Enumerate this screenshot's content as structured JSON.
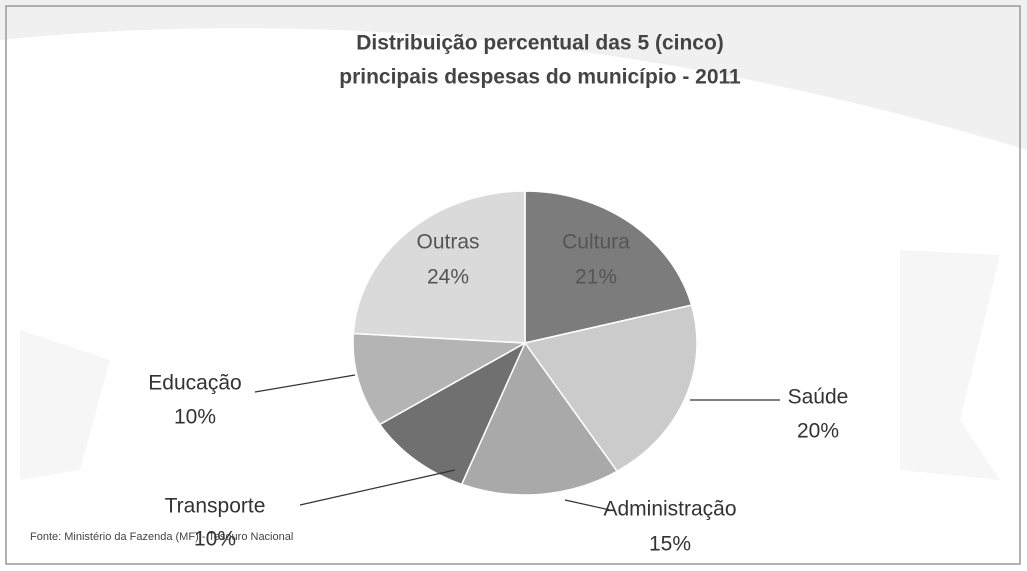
{
  "chart_data": {
    "type": "pie",
    "title": [
      "Distribuição percentual das 5 (cinco)",
      "principais despesas do município - 2011"
    ],
    "categories": [
      "Cultura",
      "Saúde",
      "Administração",
      "Transporte",
      "Educação",
      "Outras"
    ],
    "values": [
      21,
      20,
      15,
      10,
      10,
      24
    ],
    "value_labels": [
      "21%",
      "20%",
      "15%",
      "10%",
      "10%",
      "24%"
    ],
    "colors": [
      "#7c7c7c",
      "#cbcbcb",
      "#a9a9a9",
      "#707070",
      "#b4b4b4",
      "#dadada"
    ],
    "source": "Fonte: Ministério da Fazenda (MF) - Tesouro Nacional"
  }
}
